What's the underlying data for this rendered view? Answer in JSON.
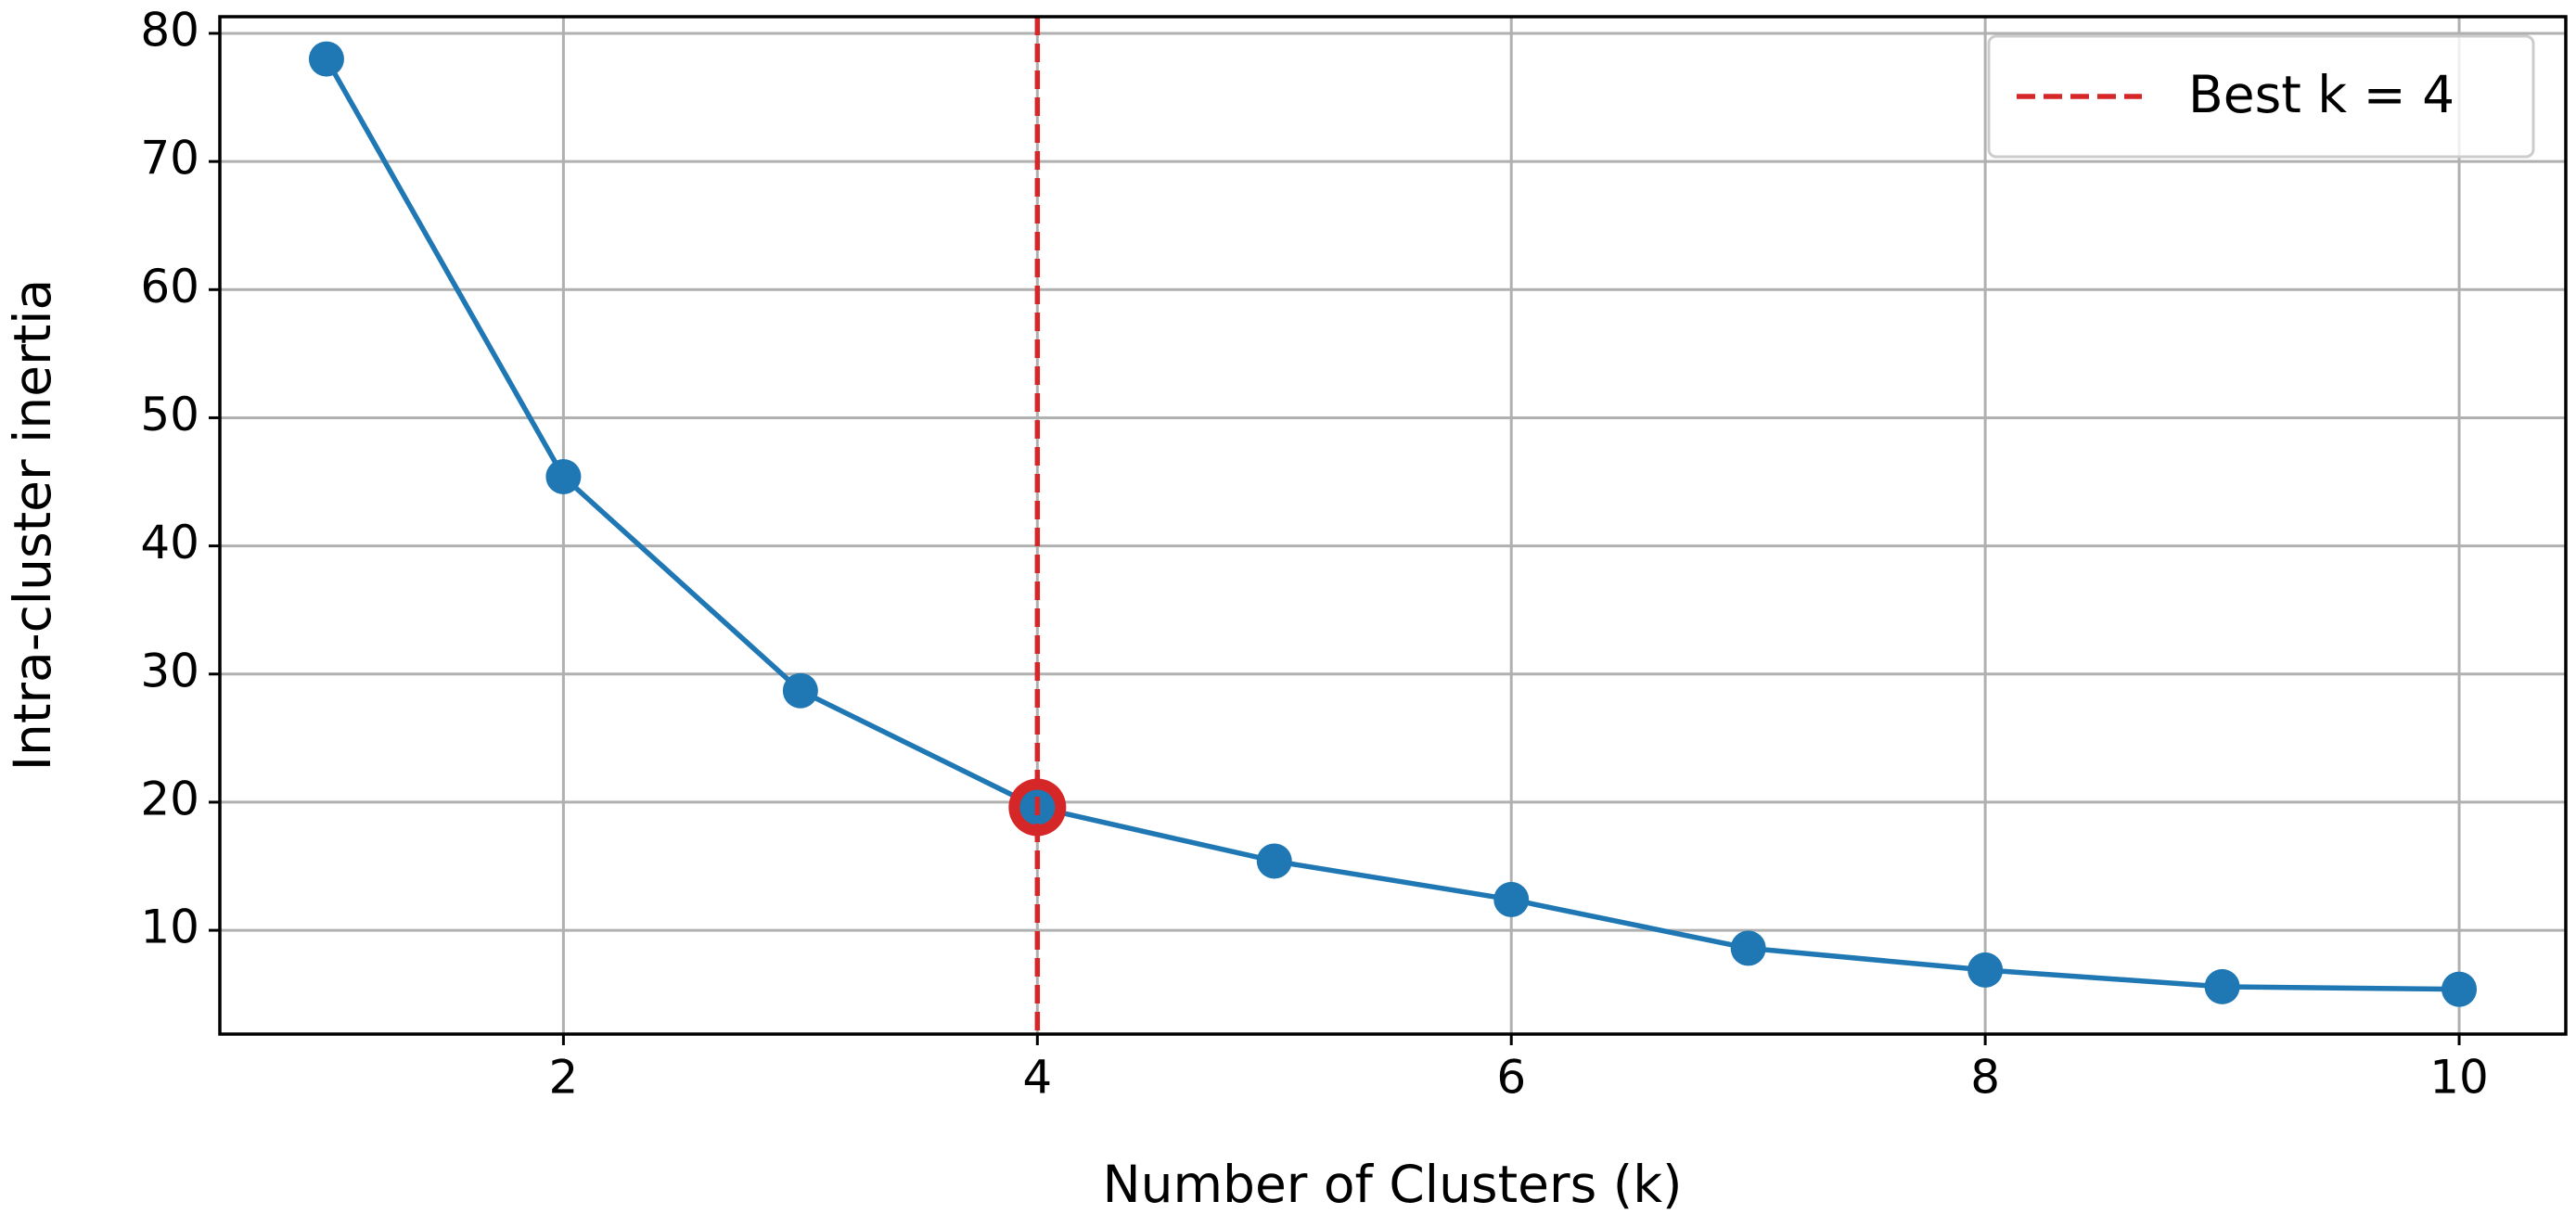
{
  "chart_data": {
    "type": "line",
    "x_label": "Number of Clusters (k)",
    "y_label": "Intra-cluster inertia",
    "x": [
      1,
      2,
      3,
      4,
      5,
      6,
      7,
      8,
      9,
      10
    ],
    "values": [
      78,
      45.4,
      28.7,
      19.6,
      15.4,
      12.4,
      8.6,
      6.9,
      5.6,
      5.4
    ],
    "color": "#1f77b4",
    "vline": {
      "x": 4,
      "label": "Best k = 4",
      "color": "#d62728"
    },
    "xlim": [
      0.55,
      10.45
    ],
    "xticks": [
      2,
      4,
      6,
      8,
      10
    ],
    "ylim": [
      1.9,
      81.3
    ],
    "yticks": [
      10,
      20,
      30,
      40,
      50,
      60,
      70,
      80
    ],
    "grid": true,
    "legend": "upper right"
  }
}
